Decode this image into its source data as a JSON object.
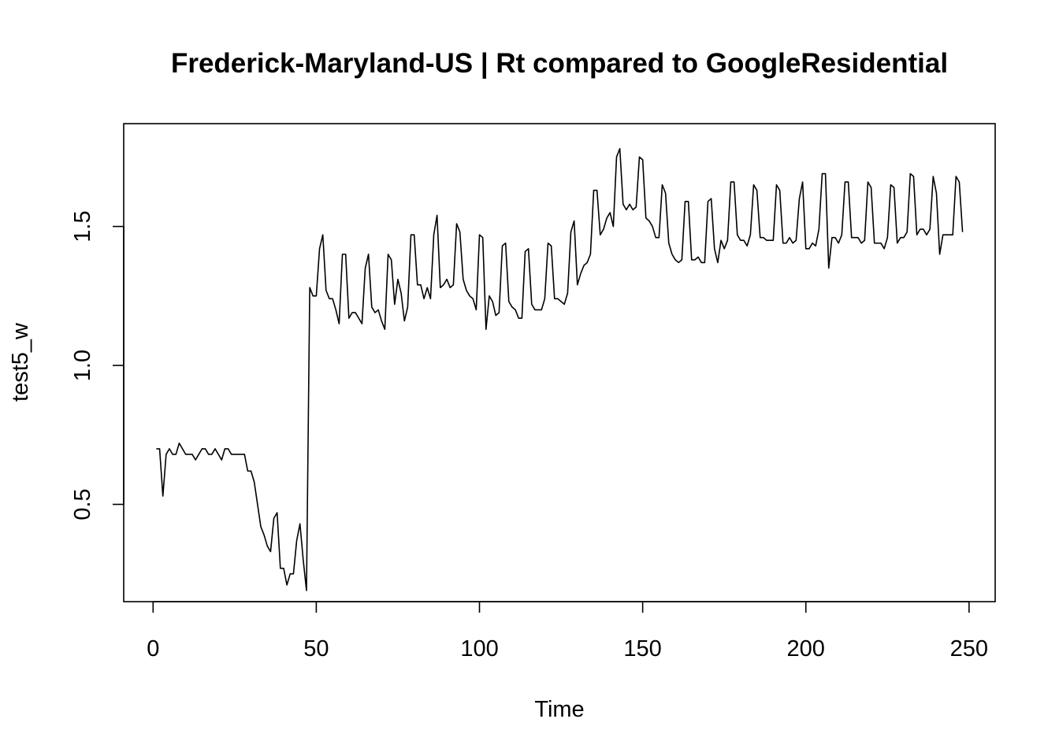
{
  "chart_data": {
    "type": "line",
    "title": "Frederick-Maryland-US | Rt compared to GoogleResidential",
    "xlabel": "Time",
    "ylabel": "test5_w",
    "xlim": [
      -9,
      258
    ],
    "ylim": [
      0.15,
      1.87
    ],
    "xticks": [
      0,
      50,
      100,
      150,
      200,
      250
    ],
    "xtick_labels": [
      "0",
      "50",
      "100",
      "150",
      "200",
      "250"
    ],
    "yticks": [
      0.5,
      1.0,
      1.5
    ],
    "ytick_labels": [
      "0.5",
      "1.0",
      "1.5"
    ],
    "grid": false,
    "line_color": "#000000",
    "series": [
      {
        "x_start": 1,
        "values": [
          0.7,
          0.7,
          0.53,
          0.68,
          0.7,
          0.68,
          0.68,
          0.72,
          0.7,
          0.68,
          0.68,
          0.68,
          0.66,
          0.68,
          0.7,
          0.7,
          0.68,
          0.68,
          0.7,
          0.68,
          0.66,
          0.7,
          0.7,
          0.68,
          0.68,
          0.68,
          0.68,
          0.68,
          0.62,
          0.62,
          0.58,
          0.5,
          0.42,
          0.39,
          0.35,
          0.33,
          0.45,
          0.47,
          0.27,
          0.27,
          0.21,
          0.25,
          0.25,
          0.37,
          0.43,
          0.3,
          0.19,
          1.28,
          1.25,
          1.25,
          1.42,
          1.47,
          1.27,
          1.24,
          1.24,
          1.2,
          1.15,
          1.4,
          1.4,
          1.17,
          1.19,
          1.19,
          1.17,
          1.15,
          1.35,
          1.4,
          1.21,
          1.19,
          1.2,
          1.16,
          1.13,
          1.4,
          1.38,
          1.22,
          1.31,
          1.26,
          1.16,
          1.21,
          1.47,
          1.47,
          1.29,
          1.29,
          1.24,
          1.28,
          1.24,
          1.47,
          1.54,
          1.28,
          1.29,
          1.31,
          1.28,
          1.29,
          1.51,
          1.48,
          1.31,
          1.27,
          1.25,
          1.24,
          1.2,
          1.47,
          1.46,
          1.13,
          1.25,
          1.23,
          1.18,
          1.19,
          1.43,
          1.44,
          1.23,
          1.21,
          1.2,
          1.17,
          1.17,
          1.41,
          1.42,
          1.22,
          1.2,
          1.2,
          1.2,
          1.24,
          1.44,
          1.43,
          1.24,
          1.24,
          1.23,
          1.22,
          1.26,
          1.48,
          1.52,
          1.29,
          1.33,
          1.36,
          1.37,
          1.4,
          1.63,
          1.63,
          1.47,
          1.49,
          1.53,
          1.55,
          1.5,
          1.75,
          1.78,
          1.58,
          1.56,
          1.58,
          1.56,
          1.57,
          1.75,
          1.74,
          1.53,
          1.52,
          1.5,
          1.46,
          1.46,
          1.65,
          1.62,
          1.44,
          1.4,
          1.38,
          1.37,
          1.38,
          1.59,
          1.59,
          1.38,
          1.38,
          1.39,
          1.37,
          1.37,
          1.59,
          1.6,
          1.42,
          1.37,
          1.45,
          1.42,
          1.45,
          1.66,
          1.66,
          1.47,
          1.45,
          1.45,
          1.43,
          1.47,
          1.65,
          1.63,
          1.46,
          1.46,
          1.45,
          1.45,
          1.45,
          1.65,
          1.63,
          1.44,
          1.44,
          1.46,
          1.44,
          1.45,
          1.6,
          1.66,
          1.42,
          1.42,
          1.44,
          1.43,
          1.49,
          1.69,
          1.69,
          1.35,
          1.46,
          1.46,
          1.44,
          1.47,
          1.66,
          1.66,
          1.46,
          1.46,
          1.46,
          1.44,
          1.45,
          1.66,
          1.64,
          1.44,
          1.44,
          1.44,
          1.42,
          1.46,
          1.65,
          1.64,
          1.44,
          1.46,
          1.46,
          1.48,
          1.69,
          1.68,
          1.47,
          1.49,
          1.49,
          1.47,
          1.49,
          1.68,
          1.62,
          1.4,
          1.47,
          1.47,
          1.47,
          1.47,
          1.68,
          1.66,
          1.48
        ]
      }
    ]
  }
}
